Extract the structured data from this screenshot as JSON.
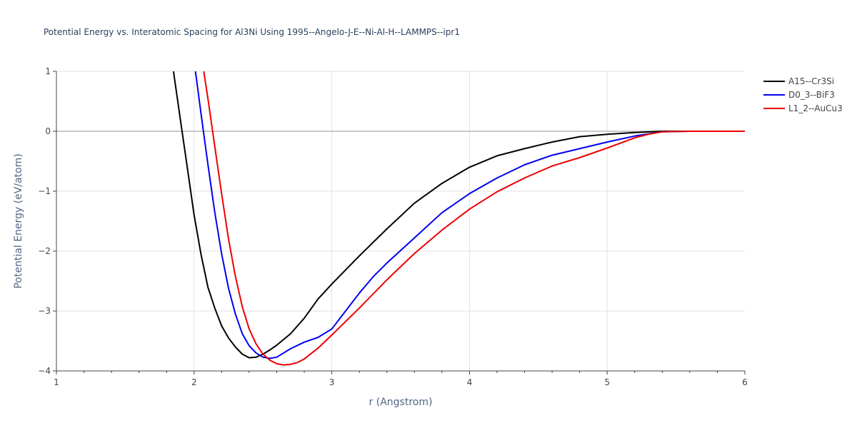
{
  "chart_data": {
    "type": "line",
    "title": "Potential Energy vs. Interatomic Spacing for Al3Ni Using 1995--Angelo-J-E--Ni-Al-H--LAMMPS--ipr1",
    "xlabel": "r (Angstrom)",
    "ylabel": "Potential Energy (eV/atom)",
    "xlim": [
      1,
      6
    ],
    "ylim": [
      -4,
      1
    ],
    "x_ticks": [
      "1",
      "2",
      "3",
      "4",
      "5",
      "6"
    ],
    "y_ticks": [
      "1",
      "0",
      "−1",
      "−2",
      "−3",
      "−4"
    ],
    "grid": true,
    "legend_position": "top-right",
    "series": [
      {
        "name": "A15--Cr3Si",
        "color": "#000000",
        "x": [
          1.85,
          1.9,
          1.95,
          2.0,
          2.05,
          2.1,
          2.15,
          2.2,
          2.25,
          2.3,
          2.35,
          2.4,
          2.45,
          2.5,
          2.55,
          2.6,
          2.7,
          2.8,
          2.9,
          3.0,
          3.2,
          3.4,
          3.6,
          3.8,
          4.0,
          4.2,
          4.4,
          4.6,
          4.8,
          5.0,
          5.2,
          5.4,
          5.6,
          5.8,
          6.0
        ],
        "y": [
          1.0,
          0.2,
          -0.6,
          -1.4,
          -2.05,
          -2.6,
          -2.95,
          -3.25,
          -3.45,
          -3.6,
          -3.72,
          -3.78,
          -3.77,
          -3.72,
          -3.65,
          -3.57,
          -3.38,
          -3.12,
          -2.8,
          -2.55,
          -2.08,
          -1.63,
          -1.2,
          -0.87,
          -0.6,
          -0.41,
          -0.29,
          -0.18,
          -0.09,
          -0.05,
          -0.02,
          0.0,
          0.0,
          0.0,
          0.0
        ]
      },
      {
        "name": "D0_3--BiF3",
        "color": "#0000ee",
        "x": [
          2.01,
          2.05,
          2.1,
          2.15,
          2.2,
          2.25,
          2.3,
          2.35,
          2.4,
          2.45,
          2.5,
          2.55,
          2.6,
          2.65,
          2.7,
          2.8,
          2.9,
          3.0,
          3.1,
          3.2,
          3.3,
          3.4,
          3.6,
          3.8,
          4.0,
          4.2,
          4.4,
          4.6,
          4.8,
          5.0,
          5.2,
          5.4,
          5.6,
          5.8,
          6.0
        ],
        "y": [
          1.0,
          0.3,
          -0.55,
          -1.35,
          -2.05,
          -2.62,
          -3.05,
          -3.38,
          -3.58,
          -3.7,
          -3.77,
          -3.79,
          -3.77,
          -3.7,
          -3.63,
          -3.52,
          -3.44,
          -3.3,
          -3.0,
          -2.7,
          -2.43,
          -2.2,
          -1.78,
          -1.36,
          -1.04,
          -0.78,
          -0.56,
          -0.4,
          -0.29,
          -0.18,
          -0.08,
          -0.01,
          0.0,
          0.0,
          0.0
        ]
      },
      {
        "name": "L1_2--AuCu3",
        "color": "#ee0000",
        "x": [
          2.07,
          2.1,
          2.15,
          2.2,
          2.25,
          2.3,
          2.35,
          2.4,
          2.45,
          2.5,
          2.55,
          2.6,
          2.65,
          2.7,
          2.75,
          2.8,
          2.9,
          3.0,
          3.2,
          3.4,
          3.6,
          3.8,
          4.0,
          4.2,
          4.4,
          4.6,
          4.8,
          5.0,
          5.2,
          5.3,
          5.4,
          5.6,
          5.8,
          6.0
        ],
        "y": [
          1.0,
          0.55,
          -0.25,
          -1.05,
          -1.8,
          -2.42,
          -2.93,
          -3.3,
          -3.55,
          -3.72,
          -3.82,
          -3.88,
          -3.9,
          -3.89,
          -3.86,
          -3.8,
          -3.62,
          -3.4,
          -2.95,
          -2.48,
          -2.04,
          -1.65,
          -1.3,
          -1.01,
          -0.78,
          -0.58,
          -0.44,
          -0.28,
          -0.11,
          -0.05,
          -0.01,
          0.0,
          0.0,
          0.0
        ]
      }
    ]
  }
}
